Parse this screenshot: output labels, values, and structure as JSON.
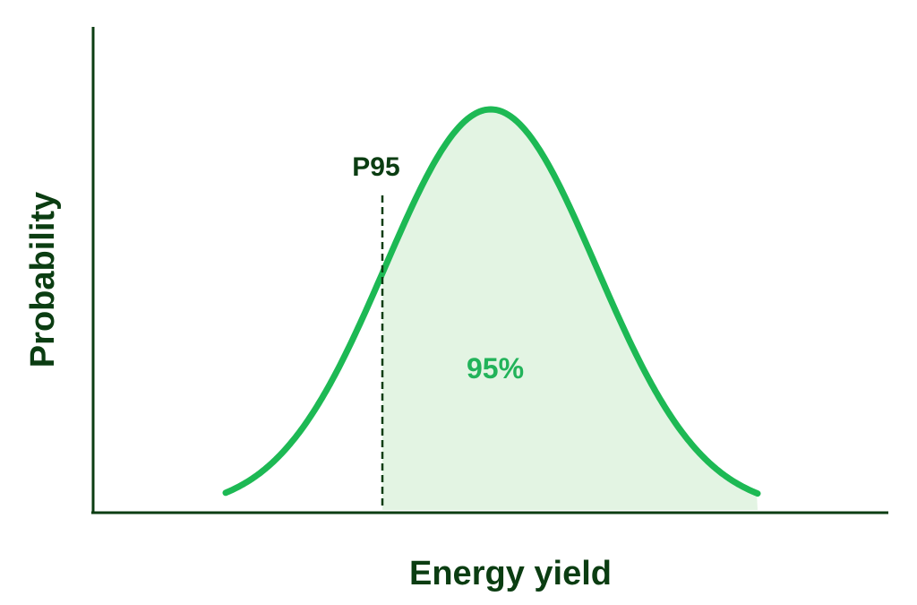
{
  "chart_data": {
    "type": "area",
    "xlabel": "Energy yield",
    "ylabel": "Probability",
    "curve": "normal",
    "marker": {
      "label": "P95"
    },
    "shaded_area_label": "95%",
    "colors": {
      "axis": "#0b3d12",
      "curve": "#1db954",
      "fill": "#e3f4e3",
      "area_label": "#22b35a"
    }
  }
}
